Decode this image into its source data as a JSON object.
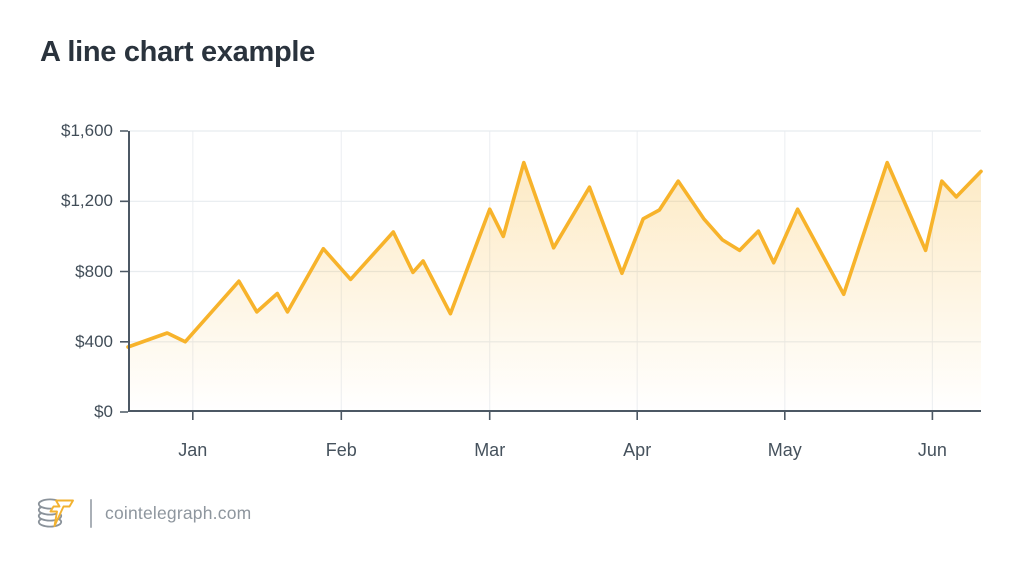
{
  "title": "A line chart example",
  "footer": {
    "site": "cointelegraph.com",
    "logo_icon": "cointelegraph-coin-stack-with-lightning-bolt"
  },
  "colors": {
    "title_text": "#2A333D",
    "axis": "#4C5864",
    "y_label_text": "#414D58",
    "x_label_text": "#46525D",
    "grid_horizontal": "#E8ECEF",
    "grid_vertical": "#EEF1F4",
    "line": "#F7B32B",
    "fill_top": "rgba(247,179,43,0.28)",
    "fill_bottom": "rgba(247,179,43,0)",
    "footer_text": "#8E969E",
    "footer_divider": "#AAB0B7",
    "background": "#FFFFFF"
  },
  "chart_data": {
    "type": "area",
    "title": "A line chart example",
    "xlabel": "",
    "ylabel": "",
    "ylim": [
      0,
      1600
    ],
    "grid": true,
    "legend": false,
    "y_ticks": [
      {
        "value": 0,
        "label": "$0"
      },
      {
        "value": 400,
        "label": "$400"
      },
      {
        "value": 800,
        "label": "$800"
      },
      {
        "value": 1200,
        "label": "$1,200"
      },
      {
        "value": 1600,
        "label": "$1,600"
      }
    ],
    "x_ticks": [
      {
        "f": 0.076,
        "label": "Jan"
      },
      {
        "f": 0.25,
        "label": "Feb"
      },
      {
        "f": 0.424,
        "label": "Mar"
      },
      {
        "f": 0.597,
        "label": "Apr"
      },
      {
        "f": 0.77,
        "label": "May"
      },
      {
        "f": 0.943,
        "label": "Jun"
      }
    ],
    "points": [
      [
        0.0,
        370
      ],
      [
        0.046,
        450
      ],
      [
        0.067,
        400
      ],
      [
        0.13,
        745
      ],
      [
        0.151,
        570
      ],
      [
        0.175,
        675
      ],
      [
        0.187,
        570
      ],
      [
        0.229,
        930
      ],
      [
        0.261,
        755
      ],
      [
        0.311,
        1025
      ],
      [
        0.334,
        795
      ],
      [
        0.346,
        860
      ],
      [
        0.378,
        560
      ],
      [
        0.424,
        1155
      ],
      [
        0.44,
        1000
      ],
      [
        0.464,
        1420
      ],
      [
        0.499,
        935
      ],
      [
        0.541,
        1280
      ],
      [
        0.579,
        790
      ],
      [
        0.604,
        1100
      ],
      [
        0.623,
        1150
      ],
      [
        0.645,
        1315
      ],
      [
        0.675,
        1100
      ],
      [
        0.697,
        980
      ],
      [
        0.717,
        920
      ],
      [
        0.739,
        1030
      ],
      [
        0.757,
        850
      ],
      [
        0.785,
        1155
      ],
      [
        0.839,
        670
      ],
      [
        0.89,
        1420
      ],
      [
        0.935,
        920
      ],
      [
        0.954,
        1315
      ],
      [
        0.971,
        1225
      ],
      [
        1.0,
        1370
      ]
    ]
  }
}
